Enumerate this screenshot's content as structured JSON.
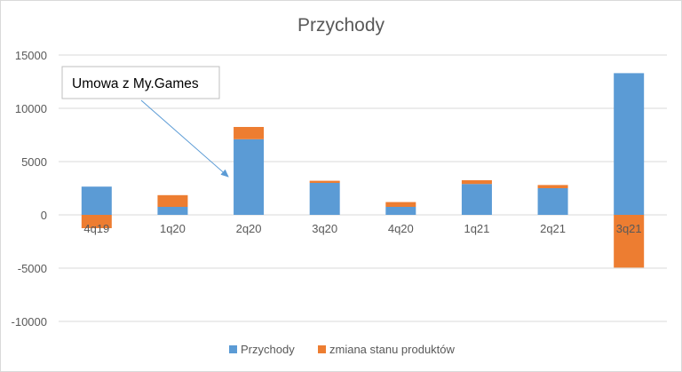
{
  "chart_data": {
    "type": "bar",
    "stacked": true,
    "title": "Przychody",
    "xlabel": "",
    "ylabel": "",
    "ylim": [
      -10000,
      15000
    ],
    "yticks": [
      15000,
      10000,
      5000,
      0,
      -5000,
      -10000
    ],
    "grid": true,
    "legend_position": "bottom",
    "categories": [
      "4q19",
      "1q20",
      "2q20",
      "3q20",
      "4q20",
      "1q21",
      "2q21",
      "3q21"
    ],
    "series": [
      {
        "name": "Przychody",
        "color": "#5B9BD5",
        "values": [
          2650,
          750,
          7100,
          3000,
          750,
          2900,
          2500,
          13300
        ]
      },
      {
        "name": "zmiana stanu produktów",
        "color": "#ED7D31",
        "values": [
          -1250,
          1100,
          1150,
          200,
          450,
          350,
          300,
          -4950
        ]
      }
    ],
    "annotations": [
      {
        "text": "Umowa z My.Games",
        "target_category": "2q20"
      }
    ]
  },
  "colors": {
    "gridline": "#d9d9d9",
    "axis_text": "#595959",
    "arrow": "#5B9BD5"
  }
}
